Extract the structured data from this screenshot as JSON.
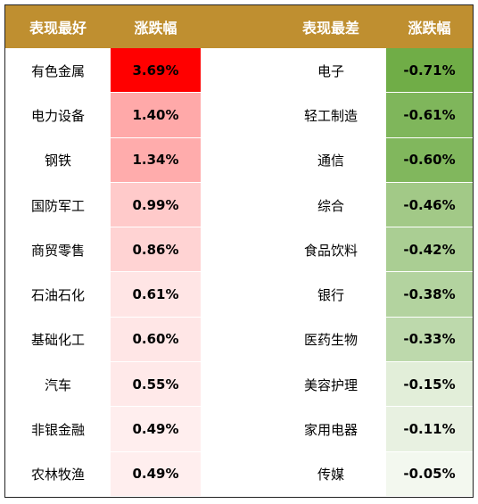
{
  "colors": {
    "header_bg": "#BF8F30",
    "header_text": "#FFFFFF"
  },
  "chart_data": {
    "type": "table",
    "columns": [
      "表现最好",
      "涨跌幅",
      "表现最差",
      "涨跌幅"
    ],
    "best": [
      {
        "name": "有色金属",
        "label": "3.69%",
        "value": 3.69,
        "color": "#FF0000"
      },
      {
        "name": "电力设备",
        "label": "1.40%",
        "value": 1.4,
        "color": "#FFA9A9"
      },
      {
        "name": "钢铁",
        "label": "1.34%",
        "value": 1.34,
        "color": "#FFACAC"
      },
      {
        "name": "国防军工",
        "label": "0.99%",
        "value": 0.99,
        "color": "#FFCACA"
      },
      {
        "name": "商贸零售",
        "label": "0.86%",
        "value": 0.86,
        "color": "#FFD3D3"
      },
      {
        "name": "石油石化",
        "label": "0.61%",
        "value": 0.61,
        "color": "#FFE5E5"
      },
      {
        "name": "基础化工",
        "label": "0.60%",
        "value": 0.6,
        "color": "#FFE6E6"
      },
      {
        "name": "汽车",
        "label": "0.55%",
        "value": 0.55,
        "color": "#FFE9E9"
      },
      {
        "name": "非银金融",
        "label": "0.49%",
        "value": 0.49,
        "color": "#FFEEEE"
      },
      {
        "name": "农林牧渔",
        "label": "0.49%",
        "value": 0.49,
        "color": "#FFEEEE"
      }
    ],
    "worst": [
      {
        "name": "电子",
        "label": "-0.71%",
        "value": -0.71,
        "color": "#70AD47"
      },
      {
        "name": "轻工制造",
        "label": "-0.61%",
        "value": -0.61,
        "color": "#7FB65B"
      },
      {
        "name": "通信",
        "label": "-0.60%",
        "value": -0.6,
        "color": "#81B75D"
      },
      {
        "name": "综合",
        "label": "-0.46%",
        "value": -0.46,
        "color": "#A2C987"
      },
      {
        "name": "食品饮料",
        "label": "-0.42%",
        "value": -0.42,
        "color": "#AACE93"
      },
      {
        "name": "银行",
        "label": "-0.38%",
        "value": -0.38,
        "color": "#B3D39F"
      },
      {
        "name": "医药生物",
        "label": "-0.33%",
        "value": -0.33,
        "color": "#BDD9AC"
      },
      {
        "name": "美容护理",
        "label": "-0.15%",
        "value": -0.15,
        "color": "#E2EED9"
      },
      {
        "name": "家用电器",
        "label": "-0.11%",
        "value": -0.11,
        "color": "#E8F1E1"
      },
      {
        "name": "传媒",
        "label": "-0.05%",
        "value": -0.05,
        "color": "#F3F8EF"
      }
    ]
  }
}
